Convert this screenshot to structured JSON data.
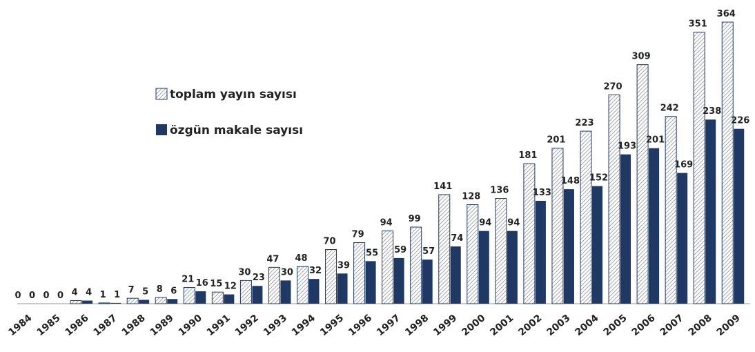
{
  "chart_data": {
    "type": "bar",
    "categories": [
      "1984",
      "1985",
      "1986",
      "1987",
      "1988",
      "1989",
      "1990",
      "1991",
      "1992",
      "1993",
      "1994",
      "1995",
      "1996",
      "1997",
      "1998",
      "1999",
      "2000",
      "2001",
      "2002",
      "2003",
      "2004",
      "2005",
      "2006",
      "2007",
      "2008",
      "2009"
    ],
    "series": [
      {
        "name": "toplam yayın sayısı",
        "color": "#1f3864",
        "values": [
          0,
          0,
          4,
          1,
          7,
          8,
          21,
          15,
          30,
          47,
          48,
          70,
          79,
          94,
          99,
          141,
          128,
          136,
          181,
          201,
          223,
          270,
          309,
          242,
          351,
          364
        ]
      },
      {
        "name": "özgün makale sayısı",
        "color": "#1f3864",
        "values": [
          0,
          0,
          4,
          1,
          5,
          6,
          16,
          12,
          23,
          30,
          32,
          39,
          55,
          59,
          57,
          74,
          94,
          94,
          133,
          148,
          152,
          193,
          201,
          169,
          238,
          226
        ]
      }
    ]
  }
}
